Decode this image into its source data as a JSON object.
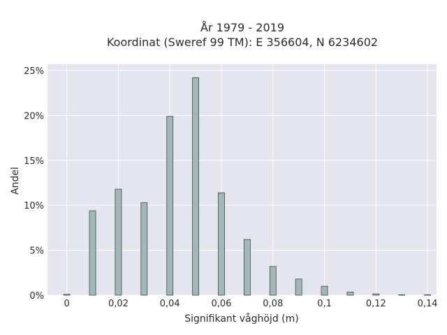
{
  "chart_data": {
    "type": "bar",
    "title_lines": [
      "År 1979 - 2019",
      "Koordinat (Sweref 99 TM): E 356604, N 6234602"
    ],
    "xlabel": "Signifikant våghöjd (m)",
    "ylabel": "Andel",
    "x": [
      0,
      0.01,
      0.02,
      0.03,
      0.04,
      0.05,
      0.06,
      0.07,
      0.08,
      0.09,
      0.1,
      0.11,
      0.12,
      0.13,
      0.14
    ],
    "values": [
      0.1,
      9.4,
      11.8,
      10.3,
      19.9,
      24.2,
      11.4,
      6.2,
      3.2,
      1.8,
      1.0,
      0.35,
      0.15,
      0.05,
      0.05
    ],
    "xlim": [
      -0.0075,
      0.1435
    ],
    "ylim": [
      0,
      25.7
    ],
    "x_ticks": [
      0,
      0.02,
      0.04,
      0.06,
      0.08,
      0.1,
      0.12,
      0.14
    ],
    "x_tick_labels": [
      "0",
      "0,02",
      "0,04",
      "0,06",
      "0,08",
      "0,1",
      "0,12",
      "0,14"
    ],
    "y_ticks": [
      0,
      5,
      10,
      15,
      20,
      25
    ],
    "y_tick_labels": [
      "0%",
      "5%",
      "10%",
      "15%",
      "20%",
      "25%"
    ],
    "grid": true,
    "bar_color": "#a2b8b8",
    "bar_edge_color": "#3a4a48",
    "plot_background": "#e5e5ef",
    "grid_color": "#ffffff"
  }
}
